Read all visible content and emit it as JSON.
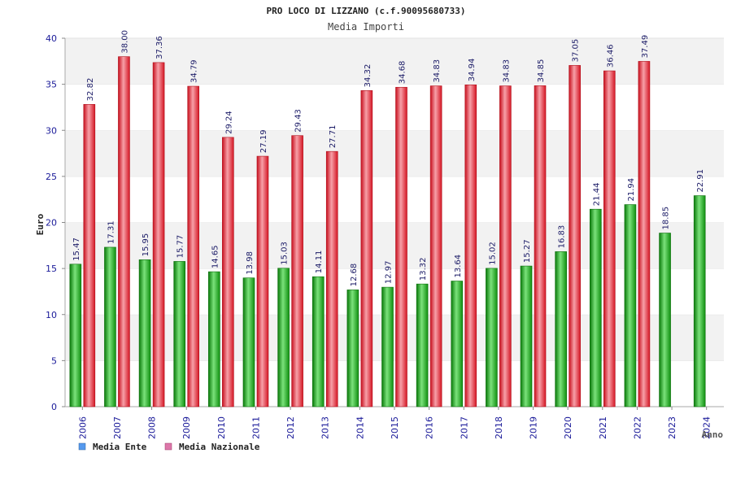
{
  "chart_data": {
    "type": "bar",
    "title": "PRO LOCO DI LIZZANO (c.f.90095680733)",
    "subtitle": "Media Importi",
    "xlabel": "Anno",
    "ylabel": "Euro",
    "ylim": [
      0,
      40
    ],
    "yticks": [
      0,
      5,
      10,
      15,
      20,
      25,
      30,
      35,
      40
    ],
    "grid": "horizontal bands",
    "legend_position": "bottom-left",
    "categories": [
      "2006",
      "2007",
      "2008",
      "2009",
      "2010",
      "2011",
      "2012",
      "2013",
      "2014",
      "2015",
      "2016",
      "2017",
      "2018",
      "2019",
      "2020",
      "2021",
      "2022",
      "2023",
      "2024"
    ],
    "series": [
      {
        "name": "Media Ente",
        "color": "#22bb22",
        "legend_color": "#5599ee",
        "values": [
          15.47,
          17.31,
          15.95,
          15.77,
          14.65,
          13.98,
          15.03,
          14.11,
          12.68,
          12.97,
          13.32,
          13.64,
          15.02,
          15.27,
          16.83,
          21.44,
          21.94,
          18.85,
          22.91
        ],
        "labels": [
          "15.47",
          "17.31",
          "15.95",
          "15.77",
          "14.65",
          "13.98",
          "15.03",
          "14.11",
          "12.68",
          "12.97",
          "13.32",
          "13.64",
          "15.02",
          "15.27",
          "16.83",
          "21.44",
          "21.94",
          "18.85",
          "22.91"
        ]
      },
      {
        "name": "Media Nazionale",
        "color": "#ee2233",
        "legend_color": "#dd77aa",
        "values": [
          32.82,
          38.0,
          37.36,
          34.79,
          29.24,
          27.19,
          29.43,
          27.71,
          34.32,
          34.68,
          34.83,
          34.94,
          34.83,
          34.85,
          37.05,
          36.46,
          37.49,
          null,
          null
        ],
        "labels": [
          "32.82",
          "38.00",
          "37.36",
          "34.79",
          "29.24",
          "27.19",
          "29.43",
          "27.71",
          "34.32",
          "34.68",
          "34.83",
          "34.94",
          "34.83",
          "34.85",
          "37.05",
          "36.46",
          "37.49",
          null,
          null
        ]
      }
    ]
  }
}
